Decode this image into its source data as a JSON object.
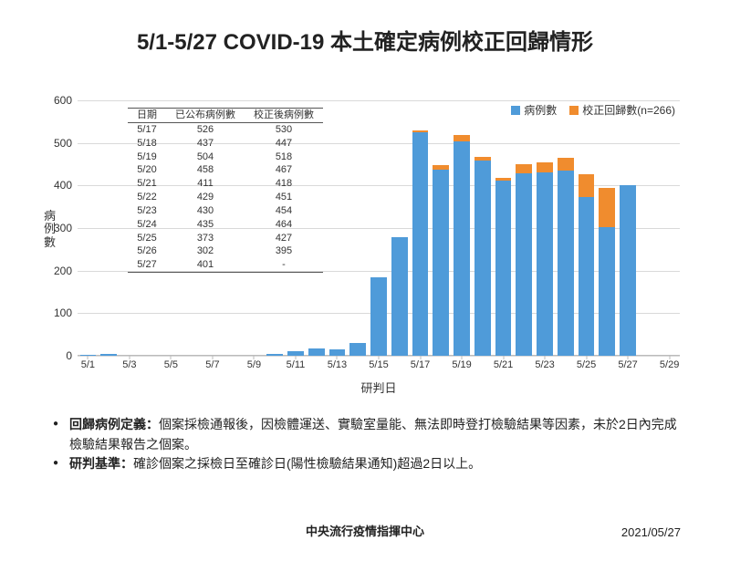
{
  "title": "5/1-5/27 COVID-19 本土確定病例校正回歸情形",
  "title_fontsize": 24,
  "chart": {
    "type": "stacked-bar",
    "background_color": "#ffffff",
    "grid_color": "#d9d9d9",
    "text_color": "#333333",
    "ylabel": "病例數",
    "xlabel": "研判日",
    "ylim": [
      0,
      600
    ],
    "ytick_step": 100,
    "x_start": "5/1",
    "x_end": "5/29",
    "x_tick_labels": [
      "5/1",
      "5/3",
      "5/5",
      "5/7",
      "5/9",
      "5/11",
      "5/13",
      "5/15",
      "5/17",
      "5/19",
      "5/21",
      "5/23",
      "5/25",
      "5/27",
      "5/29"
    ],
    "categories": [
      "5/1",
      "5/2",
      "5/3",
      "5/4",
      "5/5",
      "5/6",
      "5/7",
      "5/8",
      "5/9",
      "5/10",
      "5/11",
      "5/12",
      "5/13",
      "5/14",
      "5/15",
      "5/16",
      "5/17",
      "5/18",
      "5/19",
      "5/20",
      "5/21",
      "5/22",
      "5/23",
      "5/24",
      "5/25",
      "5/26",
      "5/27"
    ],
    "series": [
      {
        "name": "病例數",
        "color": "#4f9bd9",
        "values": [
          3,
          5,
          0,
          0,
          0,
          0,
          0,
          0,
          0,
          5,
          10,
          18,
          14,
          30,
          185,
          278,
          526,
          437,
          504,
          458,
          411,
          429,
          430,
          435,
          373,
          302,
          401
        ]
      },
      {
        "name": "校正回歸數",
        "suffix": "(n=266)",
        "color": "#f08c2e",
        "values": [
          0,
          0,
          0,
          0,
          0,
          0,
          0,
          0,
          0,
          0,
          0,
          0,
          0,
          0,
          0,
          0,
          4,
          10,
          14,
          9,
          7,
          22,
          24,
          29,
          54,
          93,
          0
        ]
      }
    ],
    "bar_width_ratio": 0.78,
    "legend_position": "top-right"
  },
  "table": {
    "columns": [
      "日期",
      "已公布病例數",
      "校正後病例數"
    ],
    "rows": [
      [
        "5/17",
        "526",
        "530"
      ],
      [
        "5/18",
        "437",
        "447"
      ],
      [
        "5/19",
        "504",
        "518"
      ],
      [
        "5/20",
        "458",
        "467"
      ],
      [
        "5/21",
        "411",
        "418"
      ],
      [
        "5/22",
        "429",
        "451"
      ],
      [
        "5/23",
        "430",
        "454"
      ],
      [
        "5/24",
        "435",
        "464"
      ],
      [
        "5/25",
        "373",
        "427"
      ],
      [
        "5/26",
        "302",
        "395"
      ],
      [
        "5/27",
        "401",
        "-"
      ]
    ],
    "border_color": "#555555",
    "font_size": 11
  },
  "notes": {
    "items": [
      {
        "term": "回歸病例定義：",
        "text": "個案採檢通報後，因檢體運送、實驗室量能、無法即時登打檢驗結果等因素，未於2日內完成檢驗結果報告之個案。"
      },
      {
        "term": "研判基準：",
        "text": "確診個案之採檢日至確診日(陽性檢驗結果通知)超過2日以上。"
      }
    ]
  },
  "footer": {
    "center": "中央流行疫情指揮中心",
    "date": "2021/05/27"
  }
}
